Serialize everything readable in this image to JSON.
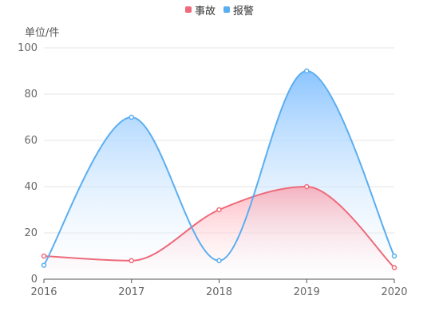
{
  "chart_data": {
    "type": "area",
    "ylabel": "单位/件",
    "categories": [
      "2016",
      "2017",
      "2018",
      "2019",
      "2020"
    ],
    "ylim": [
      0,
      100
    ],
    "yticks": [
      0,
      20,
      40,
      60,
      80,
      100
    ],
    "grid": true,
    "legend_position": "top-center",
    "series": [
      {
        "name": "事故",
        "values": [
          10,
          8,
          30,
          40,
          5
        ],
        "color": "#ee6a7a"
      },
      {
        "name": "报警",
        "values": [
          6,
          70,
          8,
          90,
          10
        ],
        "color": "#5aaef0"
      }
    ]
  }
}
